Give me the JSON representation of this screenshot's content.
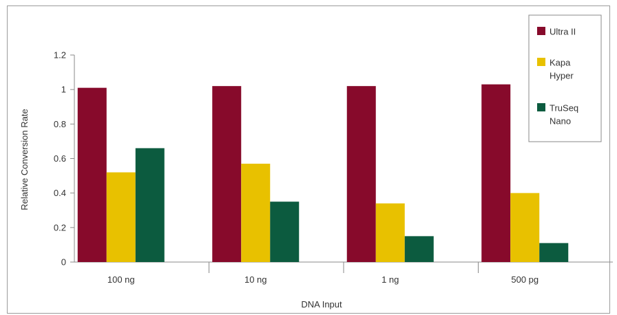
{
  "chart_data": {
    "type": "bar",
    "title": "",
    "xlabel": "DNA Input",
    "ylabel": "Relative Conversion Rate",
    "categories": [
      "100 ng",
      "10 ng",
      "1 ng",
      "500 pg"
    ],
    "series": [
      {
        "name": "Ultra II",
        "name_lines": [
          "Ultra II"
        ],
        "color": "#870a2b",
        "values": [
          1.01,
          1.02,
          1.02,
          1.03
        ]
      },
      {
        "name": "Kapa Hyper",
        "name_lines": [
          "Kapa",
          "Hyper"
        ],
        "color": "#e8c100",
        "values": [
          0.52,
          0.57,
          0.34,
          0.4
        ]
      },
      {
        "name": "TruSeq Nano",
        "name_lines": [
          "TruSeq",
          "Nano"
        ],
        "color": "#0c5b3f",
        "values": [
          0.66,
          0.35,
          0.15,
          0.11
        ]
      }
    ],
    "ylim": [
      0,
      1.2
    ],
    "yticks": [
      0,
      0.2,
      0.4,
      0.6,
      0.8,
      1,
      1.2
    ],
    "ytick_labels": [
      "0",
      "0.2",
      "0.4",
      "0.6",
      "0.8",
      "1",
      "1.2"
    ],
    "grid": false,
    "legend_position": "top-right"
  }
}
